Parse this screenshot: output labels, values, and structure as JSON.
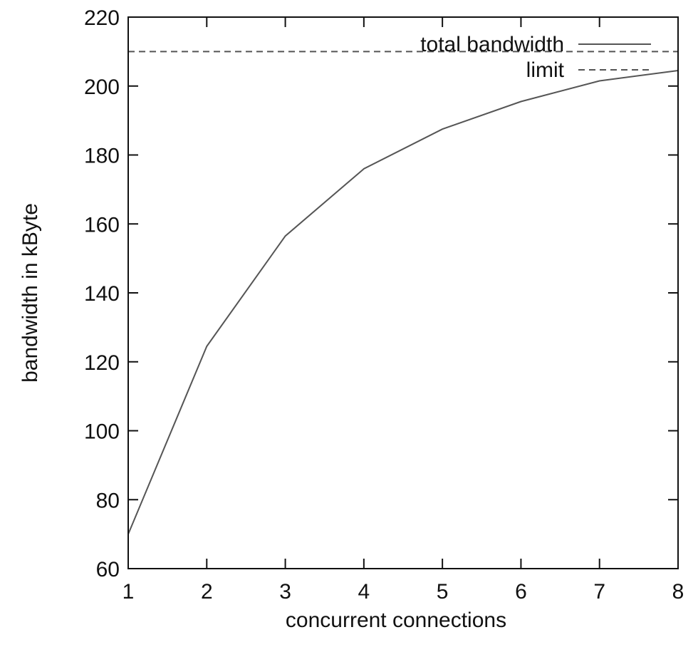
{
  "chart_data": {
    "type": "line",
    "xlabel": "concurrent connections",
    "ylabel": "bandwidth in kByte",
    "xlim": [
      1,
      8
    ],
    "ylim": [
      60,
      220
    ],
    "xticks": [
      1,
      2,
      3,
      4,
      5,
      6,
      7,
      8
    ],
    "yticks": [
      60,
      80,
      100,
      120,
      140,
      160,
      180,
      200,
      220
    ],
    "grid": false,
    "legend_position": "top-right",
    "series": [
      {
        "name": "total bandwidth",
        "style": "solid",
        "color": "#555555",
        "x": [
          1,
          2,
          3,
          4,
          5,
          6,
          7,
          8
        ],
        "y": [
          70,
          124.5,
          156.5,
          176,
          187.5,
          195.5,
          201.5,
          204.5
        ]
      },
      {
        "name": "limit",
        "style": "dashed",
        "color": "#555555",
        "x": [
          1,
          8
        ],
        "y": [
          210,
          210
        ]
      }
    ]
  }
}
